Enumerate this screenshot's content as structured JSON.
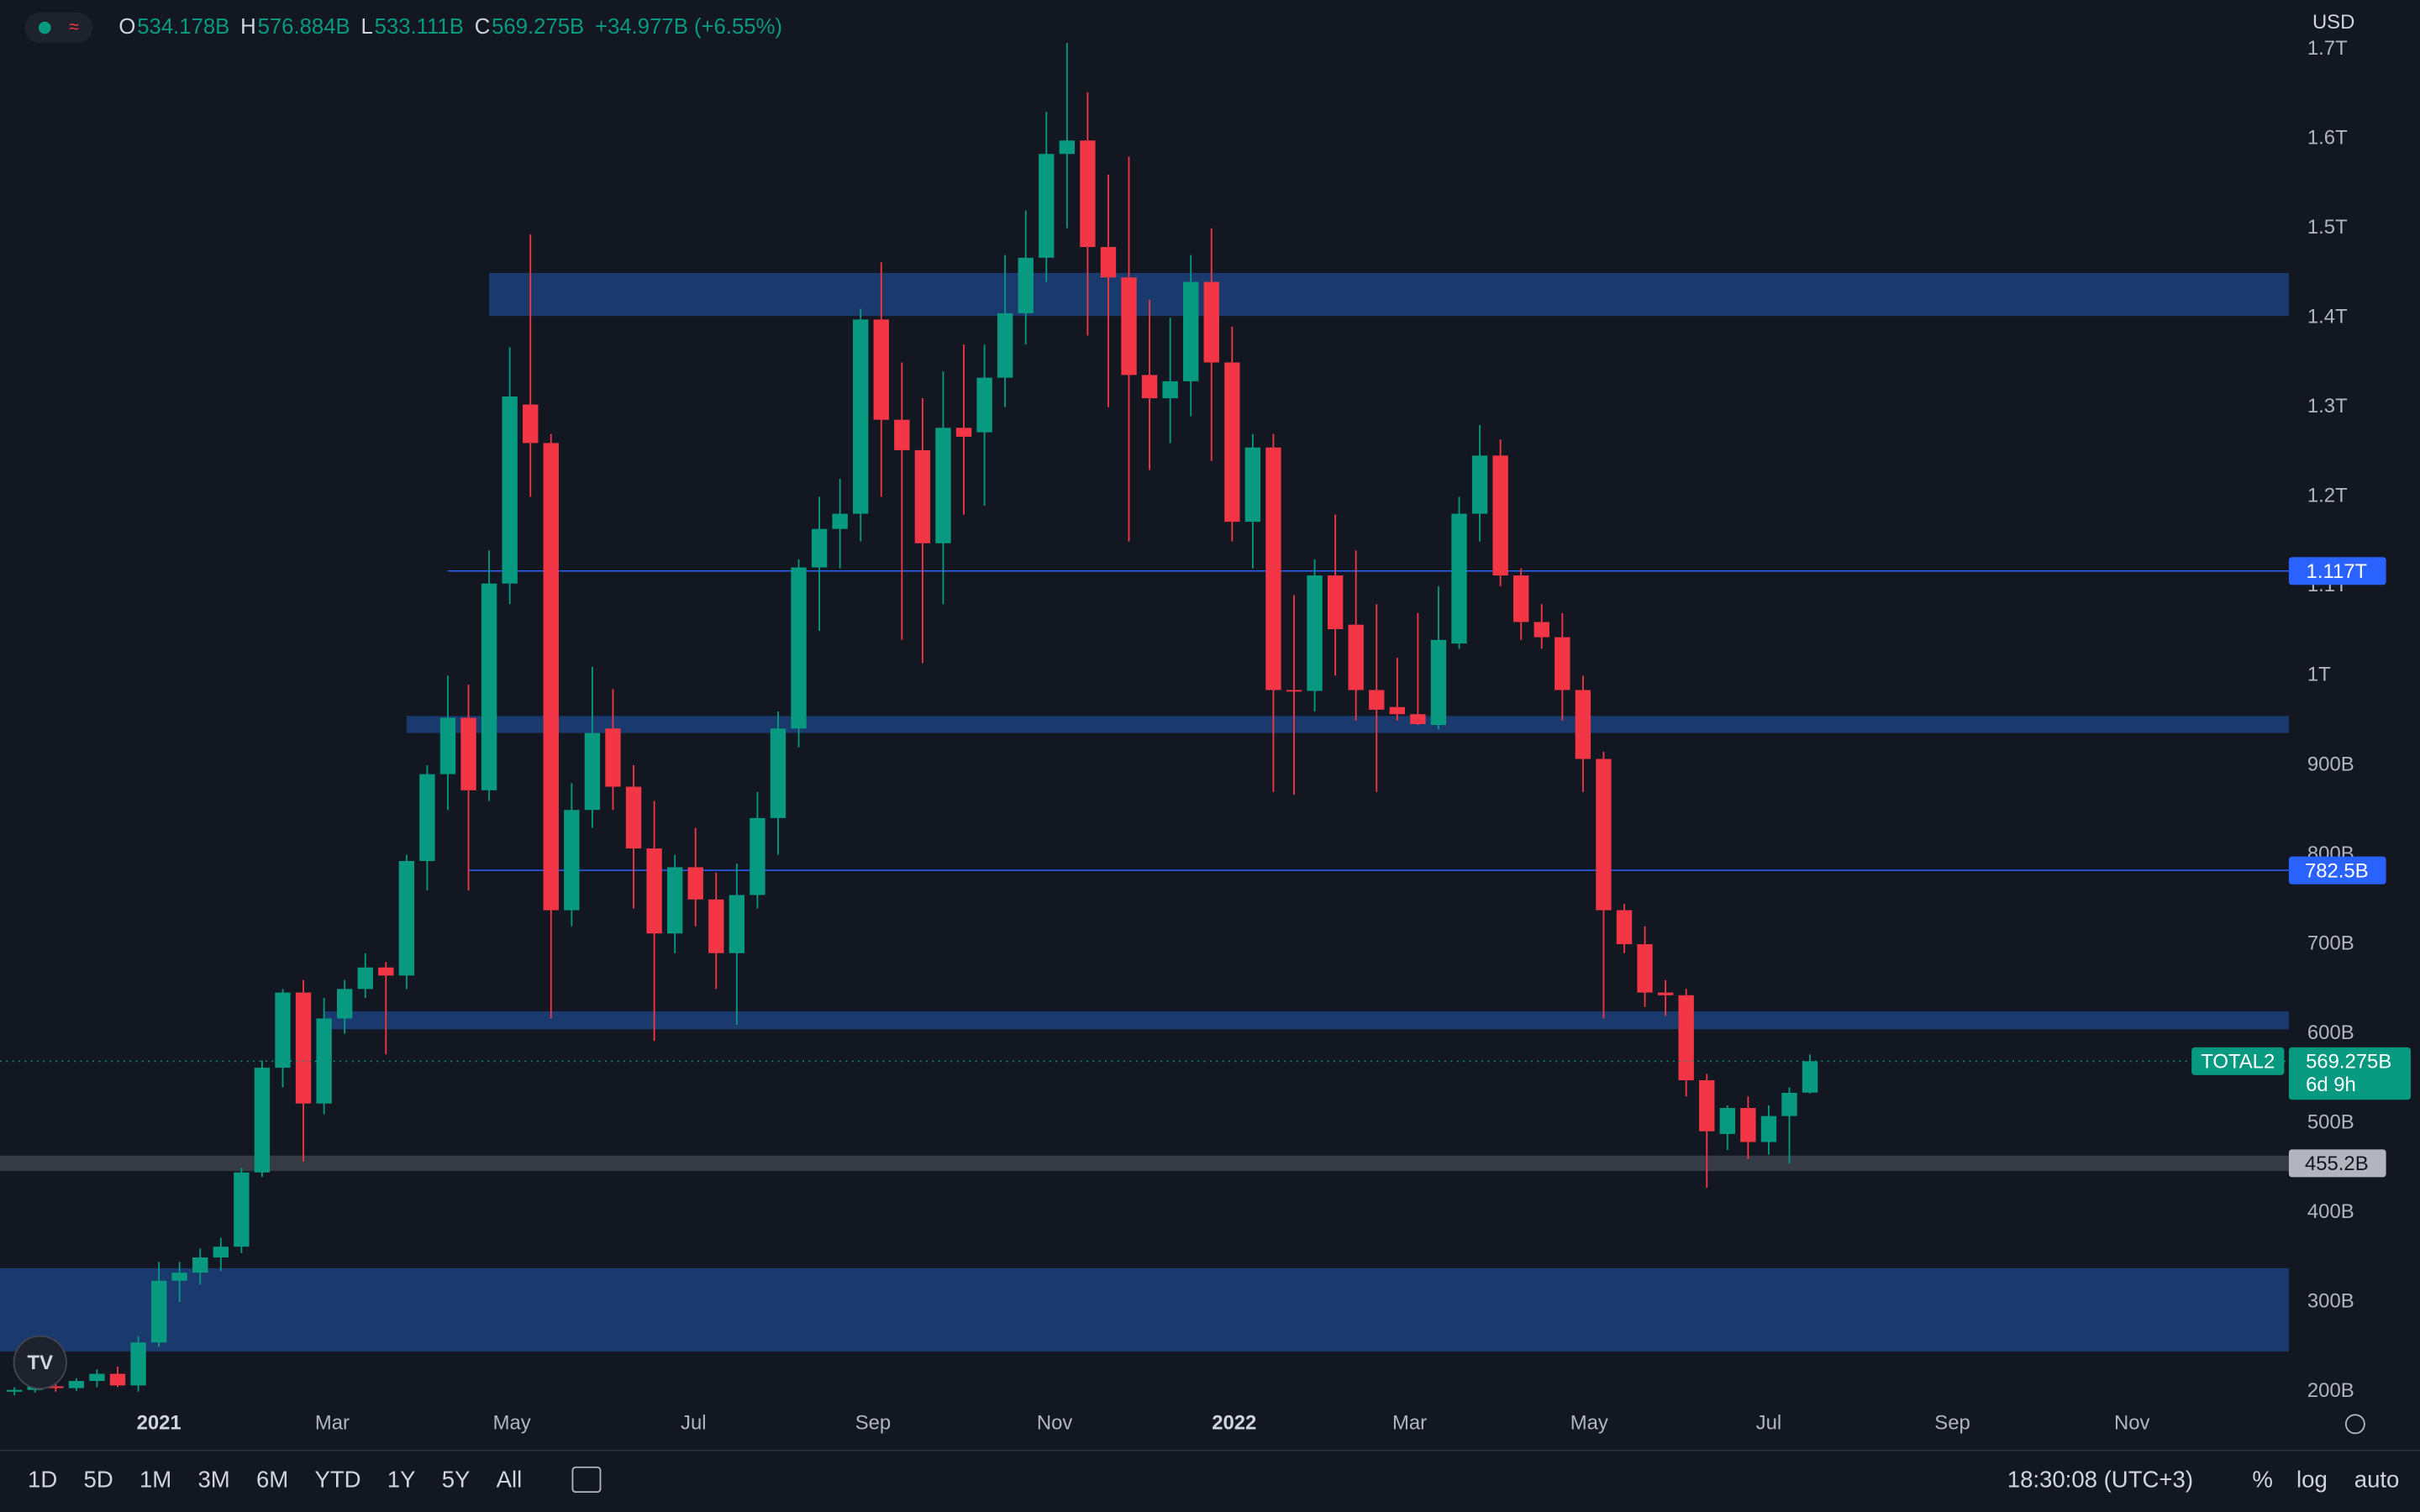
{
  "header": {
    "items": [
      {
        "key": "O",
        "text": "534.178B"
      },
      {
        "key": "H",
        "text": "576.884B"
      },
      {
        "key": "L",
        "text": "533.111B"
      },
      {
        "key": "C",
        "text": "569.275B"
      }
    ],
    "change": "+34.977B (+6.55%)",
    "currency": "USD"
  },
  "toolbar": {
    "ranges": [
      "1D",
      "5D",
      "1M",
      "3M",
      "6M",
      "YTD",
      "1Y",
      "5Y",
      "All"
    ],
    "clock": "18:30:08 (UTC+3)",
    "options": [
      "%",
      "log",
      "auto"
    ]
  },
  "chart_data": {
    "type": "candlestick",
    "up_color": "#089981",
    "down_color": "#f23645",
    "xlim": [
      -7.7,
      103.2
    ],
    "ylim": [
      138,
      1755
    ],
    "xticks": [
      {
        "value": 0,
        "label": "2021"
      },
      {
        "value": 8.4,
        "label": "Mar"
      },
      {
        "value": 17.1,
        "label": "May"
      },
      {
        "value": 25.9,
        "label": "Jul"
      },
      {
        "value": 34.6,
        "label": "Sep"
      },
      {
        "value": 43.4,
        "label": "Nov"
      },
      {
        "value": 52.1,
        "label": "2022"
      },
      {
        "value": 60.6,
        "label": "Mar"
      },
      {
        "value": 69.3,
        "label": "May"
      },
      {
        "value": 78,
        "label": "Jul"
      },
      {
        "value": 86.9,
        "label": "Sep"
      },
      {
        "value": 95.6,
        "label": "Nov"
      }
    ],
    "yticks": [
      {
        "value": 200,
        "label": "200B"
      },
      {
        "value": 300,
        "label": "300B"
      },
      {
        "value": 400,
        "label": "400B"
      },
      {
        "value": 500,
        "label": "500B"
      },
      {
        "value": 600,
        "label": "600B"
      },
      {
        "value": 700,
        "label": "700B"
      },
      {
        "value": 800,
        "label": "800B"
      },
      {
        "value": 900,
        "label": "900B"
      },
      {
        "value": 1000,
        "label": "1T"
      },
      {
        "value": 1100,
        "label": "1.1T"
      },
      {
        "value": 1200,
        "label": "1.2T"
      },
      {
        "value": 1300,
        "label": "1.3T"
      },
      {
        "value": 1400,
        "label": "1.4T"
      },
      {
        "value": 1500,
        "label": "1.5T"
      },
      {
        "value": 1600,
        "label": "1.6T"
      },
      {
        "value": 1700,
        "label": "1.7T"
      }
    ],
    "zones": [
      {
        "x0": 16,
        "from": 1402,
        "to": 1450,
        "color": "#1a3a6e"
      },
      {
        "x0": 12,
        "from": 936,
        "to": 955,
        "color": "#1a3a6e"
      },
      {
        "x0": 8,
        "from": 605,
        "to": 625,
        "color": "#1a3a6e"
      },
      {
        "x0": -7.7,
        "from": 245,
        "to": 338,
        "color": "#1a3a6e"
      }
    ],
    "levels": [
      {
        "value": 1117,
        "label": "1.117T",
        "x0": 14,
        "color": "#2962ff",
        "band": false
      },
      {
        "value": 782.5,
        "label": "782.5B",
        "x0": 15,
        "color": "#2962ff",
        "band": false
      },
      {
        "value": 455.2,
        "label": "455.2B",
        "x0": -7.7,
        "color": "#b2b5be",
        "band": true
      }
    ],
    "series": [
      {
        "name": "TOTAL2",
        "last_label": "569.275B",
        "countdown": "6d 9h",
        "x": [
          -7,
          -6,
          -5,
          -4,
          -3,
          -2,
          -1,
          0,
          1,
          2,
          3,
          4,
          5,
          6,
          7,
          8,
          9,
          10,
          11,
          12,
          13,
          14,
          15,
          16,
          17,
          18,
          19,
          20,
          21,
          22,
          23,
          24,
          25,
          26,
          27,
          28,
          29,
          30,
          31,
          32,
          33,
          34,
          35,
          36,
          37,
          38,
          39,
          40,
          41,
          42,
          43,
          44,
          45,
          46,
          47,
          48,
          49,
          50,
          51,
          52,
          53,
          54,
          55,
          56,
          57,
          58,
          59,
          60,
          61,
          62,
          63,
          64,
          65,
          66,
          67,
          68,
          69,
          70,
          71,
          72,
          73,
          74,
          75,
          76,
          77,
          78,
          79,
          80
        ],
        "open": [
          200,
          202,
          206,
          204,
          212,
          220,
          207,
          255,
          324,
          333,
          350,
          362,
          445,
          562,
          646,
          522,
          617,
          650,
          674,
          665,
          793,
          890,
          953,
          872,
          1103,
          1303,
          1260,
          738,
          850,
          941,
          876,
          807,
          712,
          786,
          750,
          690,
          755,
          841,
          941,
          1121,
          1164,
          1181,
          1398,
          1286,
          1252,
          1148,
          1277,
          1272,
          1333,
          1405,
          1467,
          1583,
          1598,
          1479,
          1445,
          1336,
          1310,
          1329,
          1440,
          1350,
          1172,
          1255,
          984,
          983,
          1112,
          1057,
          984,
          965,
          957,
          945,
          1036,
          1181,
          1246,
          1112,
          1060,
          1043,
          984,
          907,
          738,
          700,
          646,
          643,
          548,
          488,
          517,
          479,
          508,
          534.178
        ],
        "high": [
          205,
          208,
          210,
          215,
          225,
          228,
          262,
          345,
          345,
          360,
          372,
          450,
          570,
          650,
          660,
          640,
          660,
          690,
          680,
          800,
          900,
          1000,
          990,
          1140,
          1367,
          1493,
          1270,
          880,
          1010,
          985,
          900,
          860,
          800,
          830,
          780,
          790,
          870,
          960,
          1130,
          1200,
          1220,
          1410,
          1462,
          1350,
          1310,
          1340,
          1370,
          1370,
          1470,
          1520,
          1630,
          1707,
          1652,
          1560,
          1580,
          1420,
          1400,
          1470,
          1500,
          1390,
          1270,
          1270,
          1090,
          1130,
          1180,
          1140,
          1080,
          1020,
          1070,
          1100,
          1200,
          1280,
          1264,
          1120,
          1080,
          1070,
          1000,
          915,
          745,
          720,
          660,
          650,
          555,
          520,
          530,
          520,
          540,
          576.884
        ],
        "low": [
          196,
          199,
          200,
          201,
          205,
          205,
          200,
          250,
          300,
          320,
          335,
          355,
          440,
          540,
          457,
          510,
          600,
          640,
          577,
          650,
          760,
          850,
          760,
          860,
          1080,
          1200,
          617,
          720,
          830,
          850,
          740,
          592,
          690,
          720,
          650,
          610,
          740,
          800,
          920,
          1050,
          1120,
          1150,
          1200,
          1040,
          1014,
          1080,
          1180,
          1190,
          1300,
          1370,
          1440,
          1500,
          1380,
          1300,
          1150,
          1230,
          1260,
          1290,
          1240,
          1150,
          1120,
          870,
          867,
          960,
          1000,
          950,
          870,
          950,
          945,
          940,
          1030,
          1150,
          1100,
          1040,
          1030,
          950,
          870,
          617,
          690,
          630,
          620,
          530,
          428,
          470,
          460,
          465,
          455,
          533.111
        ],
        "close": [
          202,
          206,
          204,
          212,
          220,
          207,
          255,
          324,
          333,
          350,
          362,
          445,
          562,
          646,
          522,
          617,
          650,
          674,
          665,
          793,
          890,
          953,
          872,
          1103,
          1312,
          1260,
          738,
          850,
          936,
          876,
          807,
          712,
          786,
          750,
          690,
          755,
          841,
          941,
          1121,
          1164,
          1181,
          1398,
          1286,
          1252,
          1148,
          1277,
          1267,
          1333,
          1405,
          1467,
          1583,
          1598,
          1479,
          1445,
          1336,
          1310,
          1329,
          1440,
          1350,
          1172,
          1255,
          984,
          983,
          1112,
          1052,
          984,
          962,
          957,
          946,
          1040,
          1181,
          1246,
          1112,
          1060,
          1043,
          984,
          907,
          738,
          700,
          646,
          643,
          548,
          491,
          517,
          479,
          508,
          534,
          569.275
        ]
      }
    ]
  }
}
